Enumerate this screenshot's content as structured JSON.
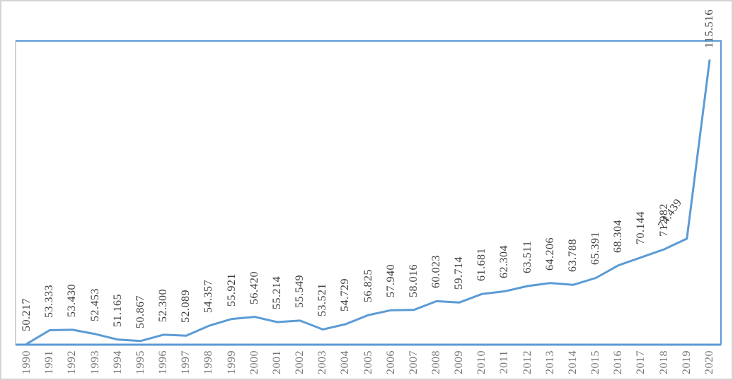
{
  "frame": {
    "border_color": "#d4d4d4",
    "background": "#ffffff"
  },
  "chart_data": {
    "type": "line",
    "title": "",
    "xlabel": "",
    "ylabel": "",
    "x": [
      "1990",
      "1991",
      "1992",
      "1993",
      "1994",
      "1995",
      "1996",
      "1997",
      "1998",
      "1999",
      "2000",
      "2001",
      "2002",
      "2003",
      "2004",
      "2005",
      "2006",
      "2007",
      "2008",
      "2009",
      "2010",
      "2011",
      "2012",
      "2013",
      "2014",
      "2015",
      "2016",
      "2017",
      "2018",
      "2019",
      "2020"
    ],
    "values": [
      50.217,
      53.333,
      53.43,
      52.453,
      51.165,
      50.867,
      52.3,
      52.089,
      54.357,
      55.921,
      56.42,
      55.214,
      55.549,
      53.521,
      54.729,
      56.825,
      57.94,
      58.016,
      60.023,
      59.714,
      61.681,
      62.304,
      63.511,
      64.206,
      63.788,
      65.391,
      68.304,
      70.144,
      71.982,
      74.439,
      115.516
    ],
    "point_labels": [
      "50.217",
      "53.333",
      "53.430",
      "52.453",
      "51.165",
      "50.867",
      "52.300",
      "52.089",
      "54.357",
      "55.921",
      "56.420",
      "55.214",
      "55.549",
      "53.521",
      "54.729",
      "56.825",
      "57.940",
      "58.016",
      "60.023",
      "59.714",
      "61.681",
      "62.304",
      "63.511",
      "64.206",
      "63.788",
      "65.391",
      "68.304",
      "70.144",
      "71.982",
      "74.439",
      "115.516"
    ],
    "ylim": [
      50,
      120
    ],
    "grid": false,
    "legend": false,
    "y_axis_tick_labels_visible": false,
    "colors": {
      "series_line": "#5b9bd5",
      "plot_border": "#5b9bd5",
      "x_axis_line": "#5b9bd5",
      "y_axis_line": "#bfbfbf",
      "data_label": "#3d3d3d",
      "tick_label": "#757575"
    },
    "data_label_rotation_deg": -90,
    "tick_label_rotation_deg": -90,
    "label_rotation_exceptions": [
      {
        "x": "2019",
        "angle_deg": -56,
        "dx": -30,
        "dy": -11
      }
    ]
  }
}
